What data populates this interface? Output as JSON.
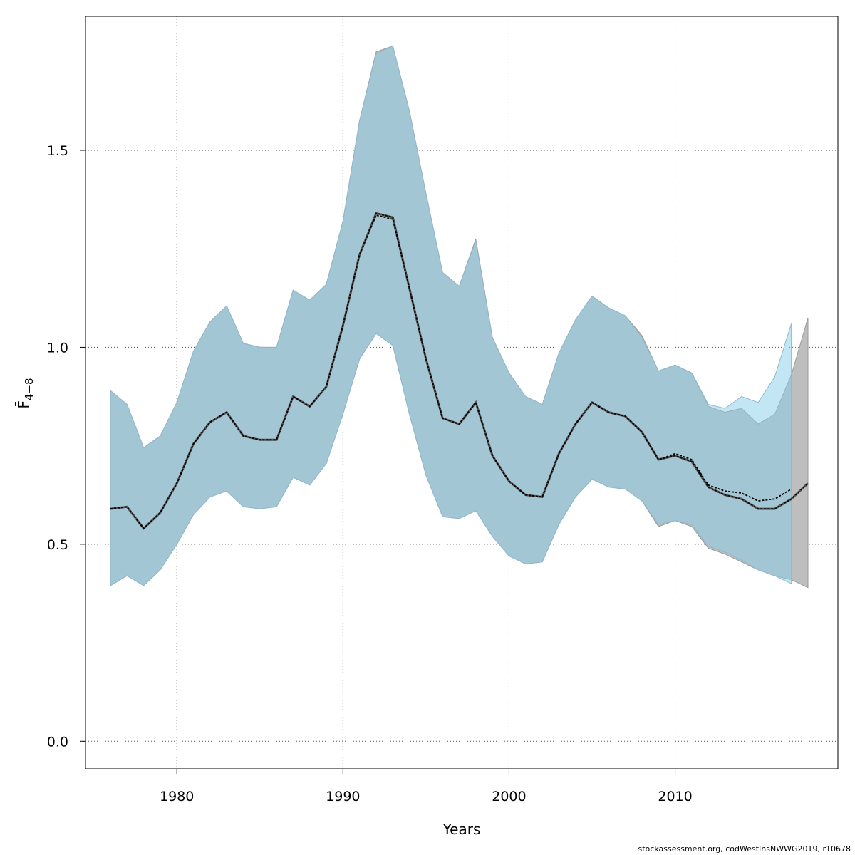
{
  "chart_data": {
    "type": "area",
    "xlabel": "Years",
    "ylabel": "F̄",
    "ylabel_subscript": "4−8",
    "xlim": [
      1974.5,
      2019.8
    ],
    "ylim": [
      -0.07,
      1.84
    ],
    "x_ticks": [
      1980,
      1990,
      2000,
      2010
    ],
    "y_ticks": [
      0.0,
      0.5,
      1.0,
      1.5
    ],
    "x_tick_labels": [
      "1980",
      "1990",
      "2000",
      "2010"
    ],
    "y_tick_labels": [
      "0.0",
      "0.5",
      "1.0",
      "1.5"
    ],
    "grid": true,
    "colors": {
      "band_blue": "#87ceeb",
      "band_grey": "#bebebe",
      "overlap": "#a6c4d4",
      "line": "#000000"
    },
    "series": [
      {
        "x": [
          1976,
          1977,
          1978,
          1979,
          1980,
          1981,
          1982,
          1983,
          1984,
          1985,
          1986,
          1987,
          1988,
          1989,
          1990,
          1991,
          1992,
          1993,
          1994,
          1995,
          1996,
          1997,
          1998,
          1999,
          2000,
          2001,
          2002,
          2003,
          2004,
          2005,
          2006,
          2007,
          2008,
          2009,
          2010,
          2011,
          2012,
          2013,
          2014,
          2015,
          2016,
          2017
        ],
        "estimate": [
          0.59,
          0.595,
          0.54,
          0.58,
          0.655,
          0.755,
          0.81,
          0.835,
          0.775,
          0.765,
          0.765,
          0.875,
          0.85,
          0.9,
          1.055,
          1.235,
          1.335,
          1.325,
          1.15,
          0.97,
          0.82,
          0.805,
          0.86,
          0.725,
          0.66,
          0.625,
          0.62,
          0.73,
          0.805,
          0.86,
          0.835,
          0.825,
          0.785,
          0.715,
          0.73,
          0.715,
          0.65,
          0.635,
          0.63,
          0.61,
          0.615,
          0.64
        ],
        "lower": [
          0.395,
          0.42,
          0.395,
          0.435,
          0.5,
          0.575,
          0.62,
          0.635,
          0.595,
          0.59,
          0.595,
          0.67,
          0.65,
          0.705,
          0.83,
          0.97,
          1.035,
          1.005,
          0.83,
          0.675,
          0.57,
          0.565,
          0.585,
          0.52,
          0.47,
          0.45,
          0.455,
          0.55,
          0.62,
          0.665,
          0.645,
          0.64,
          0.61,
          0.55,
          0.56,
          0.55,
          0.495,
          0.48,
          0.46,
          0.435,
          0.42,
          0.4
        ],
        "upper": [
          0.89,
          0.855,
          0.745,
          0.775,
          0.86,
          0.99,
          1.065,
          1.105,
          1.01,
          1.0,
          1.0,
          1.145,
          1.12,
          1.16,
          1.32,
          1.575,
          1.745,
          1.765,
          1.6,
          1.39,
          1.19,
          1.155,
          1.27,
          1.025,
          0.935,
          0.875,
          0.855,
          0.985,
          1.07,
          1.13,
          1.1,
          1.08,
          1.025,
          0.94,
          0.955,
          0.935,
          0.855,
          0.845,
          0.875,
          0.86,
          0.925,
          1.06
        ]
      },
      {
        "x": [
          1976,
          1977,
          1978,
          1979,
          1980,
          1981,
          1982,
          1983,
          1984,
          1985,
          1986,
          1987,
          1988,
          1989,
          1990,
          1991,
          1992,
          1993,
          1994,
          1995,
          1996,
          1997,
          1998,
          1999,
          2000,
          2001,
          2002,
          2003,
          2004,
          2005,
          2006,
          2007,
          2008,
          2009,
          2010,
          2011,
          2012,
          2013,
          2014,
          2015,
          2016,
          2017,
          2018
        ],
        "estimate": [
          0.59,
          0.595,
          0.54,
          0.58,
          0.655,
          0.755,
          0.81,
          0.835,
          0.775,
          0.765,
          0.765,
          0.875,
          0.85,
          0.9,
          1.055,
          1.235,
          1.34,
          1.33,
          1.15,
          0.97,
          0.82,
          0.805,
          0.86,
          0.725,
          0.66,
          0.625,
          0.62,
          0.73,
          0.805,
          0.86,
          0.835,
          0.825,
          0.785,
          0.715,
          0.725,
          0.71,
          0.645,
          0.625,
          0.615,
          0.59,
          0.59,
          0.615,
          0.655
        ],
        "lower": [
          0.395,
          0.42,
          0.395,
          0.435,
          0.5,
          0.575,
          0.62,
          0.635,
          0.595,
          0.59,
          0.595,
          0.67,
          0.65,
          0.705,
          0.83,
          0.97,
          1.035,
          1.005,
          0.83,
          0.675,
          0.57,
          0.565,
          0.585,
          0.52,
          0.47,
          0.45,
          0.455,
          0.55,
          0.62,
          0.665,
          0.645,
          0.64,
          0.61,
          0.545,
          0.56,
          0.545,
          0.49,
          0.475,
          0.455,
          0.435,
          0.42,
          0.41,
          0.39
        ],
        "upper": [
          0.89,
          0.855,
          0.745,
          0.775,
          0.86,
          0.99,
          1.065,
          1.105,
          1.01,
          1.0,
          1.0,
          1.145,
          1.12,
          1.16,
          1.32,
          1.575,
          1.75,
          1.765,
          1.6,
          1.39,
          1.19,
          1.155,
          1.275,
          1.025,
          0.935,
          0.875,
          0.855,
          0.985,
          1.07,
          1.13,
          1.1,
          1.08,
          1.03,
          0.94,
          0.955,
          0.935,
          0.85,
          0.835,
          0.845,
          0.805,
          0.83,
          0.93,
          1.075
        ]
      }
    ]
  },
  "footer": "stockassessment.org, codWestInsNWWG2019, r10678"
}
